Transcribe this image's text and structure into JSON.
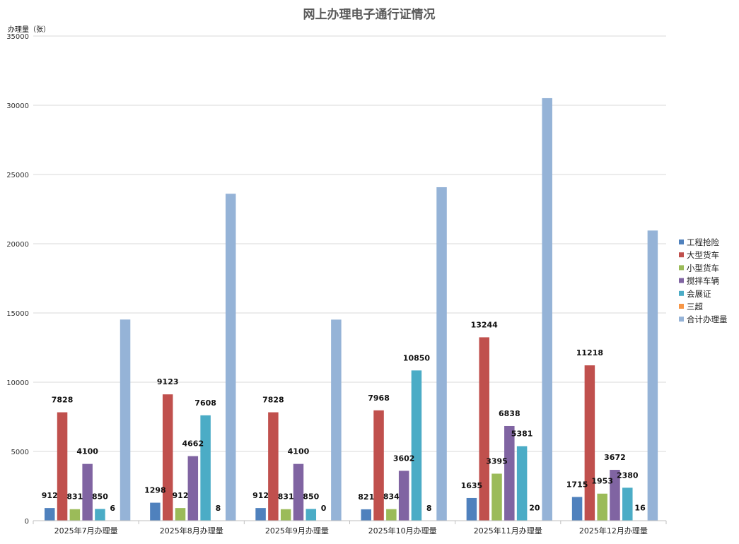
{
  "chart_data": {
    "type": "bar",
    "title": "网上办理电子通行证情况",
    "ylabel": "办理量（张）",
    "xlabel": "",
    "ylim": [
      0,
      35000
    ],
    "yticks": [
      0,
      5000,
      10000,
      15000,
      20000,
      25000,
      30000,
      35000
    ],
    "grid": true,
    "legend_position": "right",
    "categories": [
      "2025年7月办理量",
      "2025年8月办理量",
      "2025年9月办理量",
      "2025年10月办理量",
      "2025年11月办理量",
      "2025年12月办理量"
    ],
    "series": [
      {
        "name": "工程抢险",
        "color": "#4F81BD",
        "values": [
          912,
          1298,
          912,
          821,
          1635,
          1715
        ],
        "labels": [
          "912",
          "1298",
          "912",
          "821",
          "1635",
          "1715"
        ]
      },
      {
        "name": "大型货车",
        "color": "#C0504D",
        "values": [
          7828,
          9123,
          7828,
          7968,
          13244,
          11218
        ],
        "labels": [
          "7828",
          "9123",
          "7828",
          "7968",
          "13244",
          "11218"
        ]
      },
      {
        "name": "小型货车",
        "color": "#9BBB59",
        "values": [
          831,
          912,
          831,
          834,
          3395,
          1953
        ],
        "labels": [
          "831",
          "912",
          "831",
          "834",
          "3395",
          "1953"
        ]
      },
      {
        "name": "搅拌车辆",
        "color": "#8064A2",
        "values": [
          4100,
          4662,
          4100,
          3602,
          6838,
          3672
        ],
        "labels": [
          "4100",
          "4662",
          "4100",
          "3602",
          "6838",
          "3672"
        ]
      },
      {
        "name": "会展证",
        "color": "#4BACC6",
        "values": [
          850,
          7608,
          850,
          10850,
          5381,
          2380
        ],
        "labels": [
          "850",
          "7608",
          "850",
          "10850",
          "5381",
          "2380"
        ]
      },
      {
        "name": "三超",
        "color": "#F79646",
        "values": [
          6,
          8,
          0,
          8,
          20,
          16
        ],
        "labels": [
          "6",
          "8",
          "0",
          "8",
          "20",
          "16"
        ]
      },
      {
        "name": "合计办理量",
        "color": "#95B3D7",
        "values": [
          14527,
          23611,
          14521,
          24083,
          30513,
          20954
        ],
        "labels": null
      }
    ]
  }
}
